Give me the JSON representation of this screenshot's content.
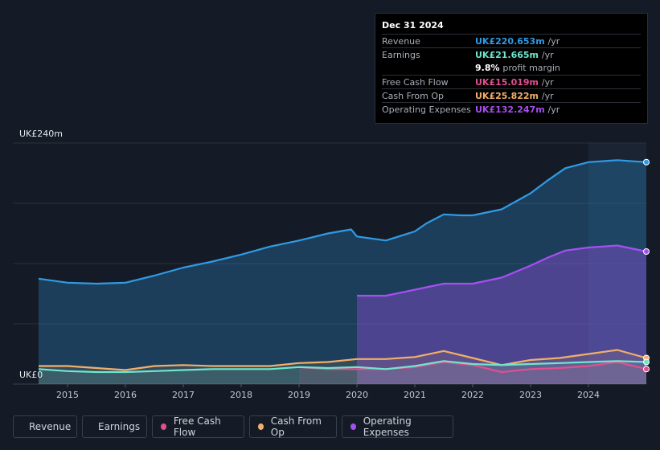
{
  "tooltip": {
    "date": "Dec 31 2024",
    "rows": [
      {
        "label": "Revenue",
        "value": "UK£220.653m",
        "unit": "/yr",
        "color": "#2f9be6"
      },
      {
        "label": "Earnings",
        "value": "UK£21.665m",
        "unit": "/yr",
        "color": "#6ee7cf"
      },
      {
        "label": "",
        "value": "9.8%",
        "unit": "profit margin",
        "color": "#ffffff"
      },
      {
        "label": "Free Cash Flow",
        "value": "UK£15.019m",
        "unit": "/yr",
        "color": "#e0508e"
      },
      {
        "label": "Cash From Op",
        "value": "UK£25.822m",
        "unit": "/yr",
        "color": "#f0b06a"
      },
      {
        "label": "Operating Expenses",
        "value": "UK£132.247m",
        "unit": "/yr",
        "color": "#a64ff0"
      }
    ]
  },
  "legend": [
    {
      "label": "Revenue",
      "color": "#2f9be6"
    },
    {
      "label": "Earnings",
      "color": "#6ee7cf"
    },
    {
      "label": "Free Cash Flow",
      "color": "#e0508e"
    },
    {
      "label": "Cash From Op",
      "color": "#f0b06a"
    },
    {
      "label": "Operating Expenses",
      "color": "#a64ff0"
    }
  ],
  "chart_data": {
    "type": "area",
    "title": "",
    "xlabel": "",
    "ylabel": "",
    "ylim": [
      0,
      240
    ],
    "y_tick_labels": [
      "UK£0",
      "UK£240m"
    ],
    "x_tick_labels": [
      "2015",
      "2016",
      "2017",
      "2018",
      "2019",
      "2020",
      "2021",
      "2022",
      "2023",
      "2024"
    ],
    "x_ticks": [
      2015,
      2016,
      2017,
      2018,
      2019,
      2020,
      2021,
      2022,
      2023,
      2024
    ],
    "xlim": [
      2014.5,
      2025.0
    ],
    "highlight_from": 2024.0,
    "series": [
      {
        "name": "Revenue",
        "color": "#2f9be6",
        "x": [
          2014.5,
          2015.0,
          2015.5,
          2016.0,
          2016.5,
          2017.0,
          2017.5,
          2018.0,
          2018.5,
          2019.0,
          2019.5,
          2019.9,
          2020.0,
          2020.5,
          2021.0,
          2021.2,
          2021.5,
          2021.8,
          2022.0,
          2022.5,
          2023.0,
          2023.3,
          2023.6,
          2024.0,
          2024.5,
          2025.0
        ],
        "values": [
          105,
          101,
          100,
          101,
          108,
          116,
          122,
          129,
          137,
          143,
          150,
          154,
          147,
          143,
          152,
          160,
          169,
          168,
          168,
          174,
          190,
          203,
          215,
          221,
          223,
          221
        ]
      },
      {
        "name": "Operating Expenses",
        "color": "#a64ff0",
        "x": [
          2020.0,
          2020.5,
          2021.0,
          2021.5,
          2022.0,
          2022.5,
          2023.0,
          2023.3,
          2023.6,
          2024.0,
          2024.5,
          2025.0
        ],
        "values": [
          88,
          88,
          94,
          100,
          100,
          106,
          118,
          126,
          133,
          136,
          138,
          132
        ]
      },
      {
        "name": "Cash From Op",
        "color": "#f0b06a",
        "x": [
          2014.5,
          2015.0,
          2015.5,
          2016.0,
          2016.5,
          2017.0,
          2017.5,
          2018.0,
          2018.5,
          2019.0,
          2019.5,
          2020.0,
          2020.5,
          2021.0,
          2021.5,
          2022.0,
          2022.5,
          2023.0,
          2023.5,
          2024.0,
          2024.5,
          2025.0
        ],
        "values": [
          18,
          18,
          16,
          14,
          18,
          19,
          18,
          18,
          18,
          21,
          22,
          25,
          25,
          27,
          33,
          26,
          19,
          24,
          26,
          30,
          34,
          26
        ]
      },
      {
        "name": "Free Cash Flow",
        "color": "#e0508e",
        "x": [
          2019.0,
          2019.5,
          2020.0,
          2020.5,
          2021.0,
          2021.5,
          2022.0,
          2022.5,
          2023.0,
          2023.5,
          2024.0,
          2024.5,
          2025.0
        ],
        "values": [
          17,
          15,
          15,
          15,
          17,
          22,
          19,
          12,
          15,
          16,
          18,
          22,
          15
        ]
      },
      {
        "name": "Earnings",
        "color": "#6ee7cf",
        "x": [
          2014.5,
          2015.0,
          2015.5,
          2016.0,
          2016.5,
          2017.0,
          2017.5,
          2018.0,
          2018.5,
          2019.0,
          2019.5,
          2020.0,
          2020.5,
          2021.0,
          2021.5,
          2022.0,
          2022.5,
          2023.0,
          2023.5,
          2024.0,
          2024.5,
          2025.0
        ],
        "values": [
          15,
          13,
          12,
          12,
          13,
          14,
          15,
          15,
          15,
          17,
          16,
          17,
          15,
          18,
          23,
          20,
          19,
          20,
          21,
          22,
          23,
          22
        ]
      }
    ]
  }
}
